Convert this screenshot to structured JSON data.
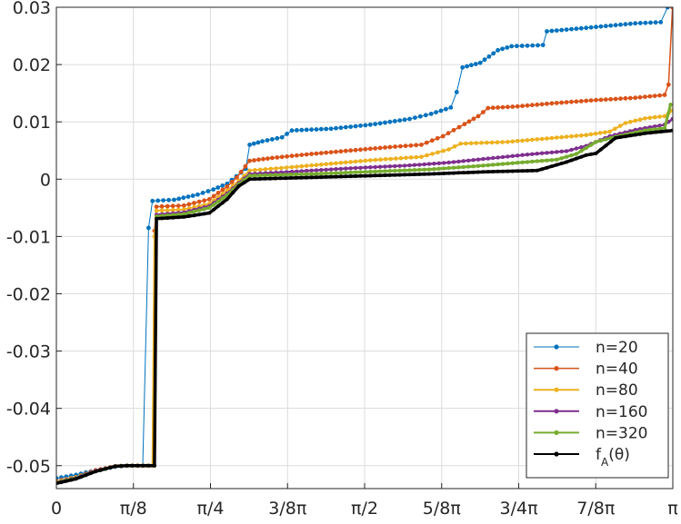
{
  "chart_data": {
    "type": "line",
    "title": "",
    "xlabel": "",
    "ylabel": "",
    "xlim": [
      0,
      3.14159
    ],
    "ylim": [
      -0.054,
      0.03
    ],
    "grid": true,
    "legend_placement": "bottom-right",
    "x_ticks": [
      {
        "value": 0,
        "label": "0"
      },
      {
        "value": 0.3927,
        "label": "π/8"
      },
      {
        "value": 0.7854,
        "label": "π/4"
      },
      {
        "value": 1.1781,
        "label": "3/8π"
      },
      {
        "value": 1.5708,
        "label": "π/2"
      },
      {
        "value": 1.9635,
        "label": "5/8π"
      },
      {
        "value": 2.3562,
        "label": "3/4π"
      },
      {
        "value": 2.7489,
        "label": "7/8π"
      },
      {
        "value": 3.1416,
        "label": "π"
      }
    ],
    "y_ticks": [
      {
        "value": 0.03,
        "label": "0.03"
      },
      {
        "value": 0.02,
        "label": "0.02"
      },
      {
        "value": 0.01,
        "label": "0.01"
      },
      {
        "value": 0,
        "label": "0"
      },
      {
        "value": -0.01,
        "label": "-0.01"
      },
      {
        "value": -0.02,
        "label": "-0.02"
      },
      {
        "value": -0.03,
        "label": "-0.03"
      },
      {
        "value": -0.04,
        "label": "-0.04"
      },
      {
        "value": -0.05,
        "label": "-0.05"
      }
    ],
    "series": [
      {
        "name": "n=20",
        "color": "#0072BD",
        "width": 1.0,
        "marker_r": 2.4,
        "marker_step": 1,
        "points": [
          [
            0,
            -0.0522
          ],
          [
            0.1,
            -0.0516
          ],
          [
            0.2,
            -0.0508
          ],
          [
            0.3,
            -0.0502
          ],
          [
            0.36,
            -0.05
          ],
          [
            0.44,
            -0.05
          ],
          [
            0.47,
            -0.0085
          ],
          [
            0.49,
            -0.0038
          ],
          [
            0.6,
            -0.0036
          ],
          [
            0.72,
            -0.0027
          ],
          [
            0.8,
            -0.0018
          ],
          [
            0.87,
            -0.0008
          ],
          [
            0.965,
            0.0018
          ],
          [
            0.985,
            0.006
          ],
          [
            1.05,
            0.0066
          ],
          [
            1.15,
            0.0073
          ],
          [
            1.2,
            0.0085
          ],
          [
            1.4,
            0.0088
          ],
          [
            1.6,
            0.0095
          ],
          [
            1.8,
            0.0105
          ],
          [
            1.91,
            0.0114
          ],
          [
            2.01,
            0.0125
          ],
          [
            2.04,
            0.0152
          ],
          [
            2.07,
            0.0195
          ],
          [
            2.16,
            0.0203
          ],
          [
            2.25,
            0.0225
          ],
          [
            2.32,
            0.0232
          ],
          [
            2.48,
            0.0234
          ],
          [
            2.5,
            0.0258
          ],
          [
            2.7,
            0.0264
          ],
          [
            2.95,
            0.0272
          ],
          [
            3.08,
            0.0274
          ],
          [
            3.115,
            0.03
          ]
        ]
      },
      {
        "name": "n=40",
        "color": "#D95319",
        "width": 1.5,
        "marker_r": 2.4,
        "marker_step": 1,
        "points": [
          [
            0,
            -0.0527
          ],
          [
            0.1,
            -0.052
          ],
          [
            0.2,
            -0.0508
          ],
          [
            0.3,
            -0.0501
          ],
          [
            0.36,
            -0.05
          ],
          [
            0.49,
            -0.05
          ],
          [
            0.5,
            -0.009
          ],
          [
            0.51,
            -0.0048
          ],
          [
            0.65,
            -0.0046
          ],
          [
            0.78,
            -0.0035
          ],
          [
            0.87,
            -0.0013
          ],
          [
            0.92,
            0.0003
          ],
          [
            0.985,
            0.0032
          ],
          [
            1.1,
            0.0037
          ],
          [
            1.3,
            0.0044
          ],
          [
            1.5,
            0.005
          ],
          [
            1.7,
            0.0056
          ],
          [
            1.86,
            0.006
          ],
          [
            1.97,
            0.0075
          ],
          [
            2.08,
            0.0096
          ],
          [
            2.15,
            0.011
          ],
          [
            2.2,
            0.0124
          ],
          [
            2.35,
            0.0127
          ],
          [
            2.55,
            0.0133
          ],
          [
            2.75,
            0.0138
          ],
          [
            2.95,
            0.0142
          ],
          [
            3.1,
            0.0147
          ],
          [
            3.12,
            0.0165
          ],
          [
            3.14,
            0.03
          ]
        ]
      },
      {
        "name": "n=80",
        "color": "#EDB120",
        "width": 2.0,
        "marker_r": 2.3,
        "marker_step": 1,
        "points": [
          [
            0,
            -0.0528
          ],
          [
            0.1,
            -0.052
          ],
          [
            0.2,
            -0.0509
          ],
          [
            0.3,
            -0.0501
          ],
          [
            0.36,
            -0.05
          ],
          [
            0.49,
            -0.05
          ],
          [
            0.5,
            -0.01
          ],
          [
            0.51,
            -0.0055
          ],
          [
            0.65,
            -0.0053
          ],
          [
            0.78,
            -0.0043
          ],
          [
            0.87,
            -0.002
          ],
          [
            0.93,
            -0.0003
          ],
          [
            0.985,
            0.0015
          ],
          [
            1.2,
            0.0021
          ],
          [
            1.4,
            0.0027
          ],
          [
            1.6,
            0.0033
          ],
          [
            1.86,
            0.0039
          ],
          [
            2.0,
            0.0052
          ],
          [
            2.06,
            0.0062
          ],
          [
            2.3,
            0.0065
          ],
          [
            2.5,
            0.0071
          ],
          [
            2.7,
            0.0077
          ],
          [
            2.82,
            0.0083
          ],
          [
            2.9,
            0.0098
          ],
          [
            3.0,
            0.0106
          ],
          [
            3.1,
            0.011
          ],
          [
            3.14,
            0.012
          ]
        ]
      },
      {
        "name": "n=160",
        "color": "#7E2F8E",
        "width": 2.5,
        "marker_r": 2.2,
        "marker_step": 1,
        "points": [
          [
            0,
            -0.0529
          ],
          [
            0.1,
            -0.0521
          ],
          [
            0.2,
            -0.0509
          ],
          [
            0.3,
            -0.0501
          ],
          [
            0.36,
            -0.05
          ],
          [
            0.5,
            -0.05
          ],
          [
            0.51,
            -0.0062
          ],
          [
            0.65,
            -0.0058
          ],
          [
            0.78,
            -0.0047
          ],
          [
            0.87,
            -0.0025
          ],
          [
            0.93,
            -0.0007
          ],
          [
            0.985,
            0.0009
          ],
          [
            1.2,
            0.0013
          ],
          [
            1.5,
            0.0019
          ],
          [
            1.8,
            0.0024
          ],
          [
            2.0,
            0.0029
          ],
          [
            2.2,
            0.0036
          ],
          [
            2.4,
            0.0043
          ],
          [
            2.6,
            0.0049
          ],
          [
            2.7,
            0.0058
          ],
          [
            2.82,
            0.0075
          ],
          [
            2.95,
            0.0086
          ],
          [
            3.1,
            0.0095
          ],
          [
            3.14,
            0.0105
          ]
        ]
      },
      {
        "name": "n=320",
        "color": "#77AC30",
        "width": 3.0,
        "marker_r": 2.2,
        "marker_step": 1,
        "points": [
          [
            0,
            -0.053
          ],
          [
            0.1,
            -0.0522
          ],
          [
            0.2,
            -0.051
          ],
          [
            0.3,
            -0.0501
          ],
          [
            0.36,
            -0.05
          ],
          [
            0.5,
            -0.05
          ],
          [
            0.51,
            -0.0065
          ],
          [
            0.65,
            -0.0061
          ],
          [
            0.78,
            -0.005
          ],
          [
            0.87,
            -0.0028
          ],
          [
            0.93,
            -0.0009
          ],
          [
            0.985,
            0.0006
          ],
          [
            1.3,
            0.0009
          ],
          [
            1.6,
            0.0013
          ],
          [
            1.9,
            0.0017
          ],
          [
            2.15,
            0.0023
          ],
          [
            2.4,
            0.003
          ],
          [
            2.55,
            0.0034
          ],
          [
            2.65,
            0.0044
          ],
          [
            2.75,
            0.0065
          ],
          [
            2.85,
            0.0074
          ],
          [
            3.0,
            0.0085
          ],
          [
            3.1,
            0.0089
          ],
          [
            3.13,
            0.013
          ]
        ]
      },
      {
        "name": "f_A(θ)",
        "color": "#000000",
        "width": 3.5,
        "marker_r": 2.0,
        "marker_step": 1,
        "points": [
          [
            0,
            -0.0531
          ],
          [
            0.1,
            -0.0523
          ],
          [
            0.2,
            -0.051
          ],
          [
            0.3,
            -0.0501
          ],
          [
            0.36,
            -0.05
          ],
          [
            0.5,
            -0.05
          ],
          [
            0.51,
            -0.0069
          ],
          [
            0.65,
            -0.0066
          ],
          [
            0.78,
            -0.0059
          ],
          [
            0.87,
            -0.0035
          ],
          [
            0.93,
            -0.0012
          ],
          [
            0.985,
            0.0
          ],
          [
            1.3,
            0.0003
          ],
          [
            1.6,
            0.0006
          ],
          [
            1.9,
            0.0009
          ],
          [
            2.2,
            0.0013
          ],
          [
            2.45,
            0.0015
          ],
          [
            2.6,
            0.003
          ],
          [
            2.7,
            0.0042
          ],
          [
            2.75,
            0.0045
          ],
          [
            2.85,
            0.0072
          ],
          [
            3.0,
            0.008
          ],
          [
            3.14,
            0.0085
          ]
        ]
      }
    ]
  }
}
